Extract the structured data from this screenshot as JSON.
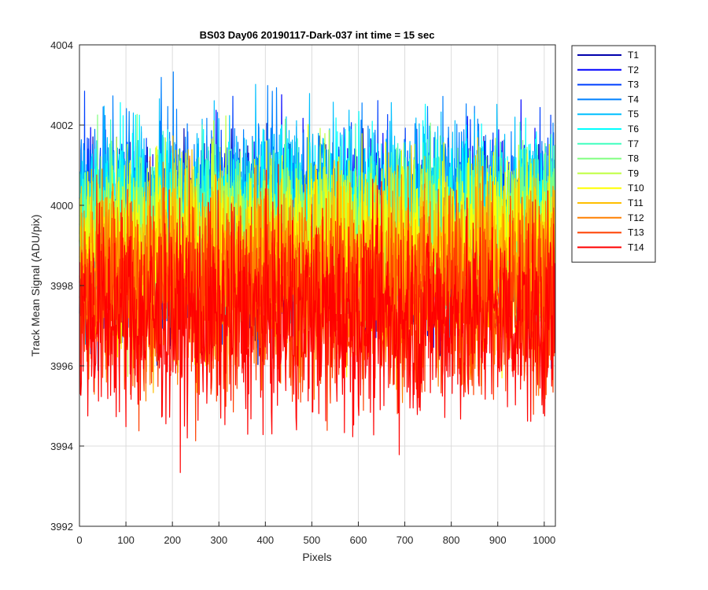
{
  "chart_data": {
    "type": "line",
    "title": "BS03 Day06 20190117-Dark-037 int time = 15 sec",
    "xlabel": "Pixels",
    "ylabel": "Track Mean Signal (ADU/pix)",
    "xlim": [
      0,
      1024
    ],
    "ylim": [
      3992,
      4004
    ],
    "xticks": [
      0,
      100,
      200,
      300,
      400,
      500,
      600,
      700,
      800,
      900,
      1000
    ],
    "yticks": [
      3992,
      3994,
      3996,
      3998,
      4000,
      4002,
      4004
    ],
    "grid": true,
    "legend_location": "outside-top-right",
    "num_points": 1024,
    "series": [
      {
        "name": "T1",
        "color": "#0000ad",
        "mean": 3999.0,
        "spread": 1.2
      },
      {
        "name": "T2",
        "color": "#0000ff",
        "mean": 3999.3,
        "spread": 1.2
      },
      {
        "name": "T3",
        "color": "#0040ff",
        "mean": 3999.5,
        "spread": 1.2
      },
      {
        "name": "T4",
        "color": "#0080ff",
        "mean": 3999.8,
        "spread": 1.2
      },
      {
        "name": "T5",
        "color": "#00bfff",
        "mean": 3999.8,
        "spread": 1.2
      },
      {
        "name": "T6",
        "color": "#00ffff",
        "mean": 3999.6,
        "spread": 1.1
      },
      {
        "name": "T7",
        "color": "#40ffbf",
        "mean": 3999.4,
        "spread": 1.1
      },
      {
        "name": "T8",
        "color": "#80ff80",
        "mean": 3999.2,
        "spread": 1.1
      },
      {
        "name": "T9",
        "color": "#bfff40",
        "mean": 3999.0,
        "spread": 1.1
      },
      {
        "name": "T10",
        "color": "#ffff00",
        "mean": 3998.8,
        "spread": 1.2
      },
      {
        "name": "T11",
        "color": "#ffbf00",
        "mean": 3998.5,
        "spread": 1.2
      },
      {
        "name": "T12",
        "color": "#ff8000",
        "mean": 3998.1,
        "spread": 1.2
      },
      {
        "name": "T13",
        "color": "#ff4000",
        "mean": 3997.6,
        "spread": 1.3
      },
      {
        "name": "T14",
        "color": "#ff0000",
        "mean": 3997.2,
        "spread": 1.3
      }
    ]
  }
}
